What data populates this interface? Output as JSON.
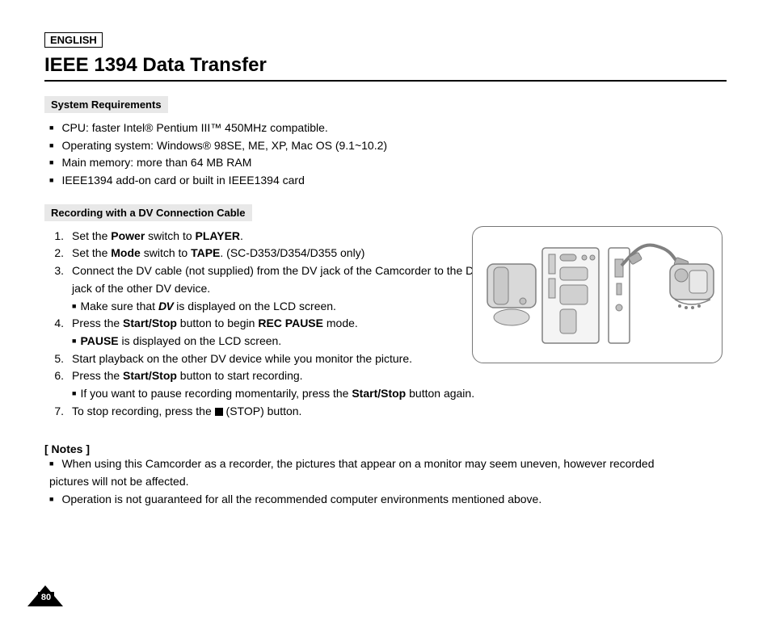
{
  "language_box": "ENGLISH",
  "title": "IEEE 1394 Data Transfer",
  "section_sysreq": {
    "label": "System Requirements",
    "items": [
      "CPU: faster Intel® Pentium III™ 450MHz compatible.",
      "Operating system: Windows® 98SE, ME, XP, Mac OS (9.1~10.2)",
      "Main memory: more than 64 MB RAM",
      "IEEE1394 add-on card or built in IEEE1394 card"
    ]
  },
  "section_record": {
    "label": "Recording with a DV Connection Cable",
    "steps": [
      {
        "n": "1.",
        "t": "Set the <b>Power</b> switch to <b>PLAYER</b>."
      },
      {
        "n": "2.",
        "t": "Set the <b>Mode</b> switch to <b>TAPE</b>. (SC-D353/D354/D355 only)"
      },
      {
        "n": "3.",
        "t": "Connect the DV cable (not supplied) from the DV jack of the Camcorder to the DV jack of the other DV device.",
        "sub": "Make sure that  <span class='dv-glyph'>DV</span>  is displayed on the LCD screen."
      },
      {
        "n": "4.",
        "t": "Press the <b>Start/Stop</b> button to begin <b>REC PAUSE</b> mode.",
        "sub": "<b>PAUSE</b> is displayed on the LCD screen."
      },
      {
        "n": "5.",
        "t": "Start playback on the other DV device while you monitor the picture.",
        "wide": true
      },
      {
        "n": "6.",
        "t": "Press the <b>Start/Stop</b> button to start recording.",
        "sub": "If you want to pause recording momentarily, press the <b>Start/Stop</b> button again.",
        "wide": true
      },
      {
        "n": "7.",
        "t": "To stop recording, press the  <span class='stop-sq'></span> (STOP) button.",
        "wide": true
      }
    ]
  },
  "notes": {
    "label": "[ Notes ]",
    "items": [
      "When using this Camcorder as a recorder, the pictures that appear on a monitor may seem uneven, however recorded pictures will not be affected.",
      "Operation is not guaranteed for all the recommended computer environments mentioned above."
    ]
  },
  "page_number": "80",
  "illustration": {
    "stroke": "#808080",
    "fill_light": "#d9d9d9",
    "fill_dark": "#b0b0b0"
  }
}
